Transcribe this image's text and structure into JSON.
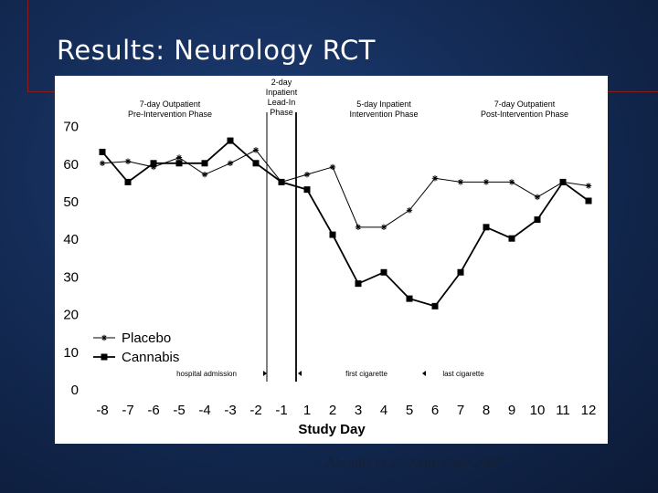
{
  "slide": {
    "title": "Results: Neurology RCT",
    "citation": "Abrams et al. Neurology 2007"
  },
  "colors": {
    "background": "#142c57",
    "accent": "#8a1c1c",
    "title": "#ffffff",
    "ink": "#000000"
  },
  "chart_data": {
    "type": "line",
    "xlabel": "Study Day",
    "ylabel": "",
    "x": [
      -8,
      -7,
      -6,
      -5,
      -4,
      -3,
      -2,
      -1,
      1,
      2,
      3,
      4,
      5,
      6,
      7,
      8,
      9,
      10,
      11,
      12
    ],
    "ylim": [
      0,
      70
    ],
    "y_ticks": [
      0,
      10,
      20,
      30,
      40,
      50,
      60,
      70
    ],
    "grid": false,
    "legend_position": "bottom-left",
    "series": [
      {
        "name": "Placebo",
        "marker": "star",
        "values": [
          60,
          60.5,
          59,
          61.5,
          57,
          60,
          63.5,
          55,
          57,
          59,
          43,
          43,
          47.5,
          56,
          55,
          55,
          55,
          51,
          55,
          54
        ]
      },
      {
        "name": "Cannabis",
        "marker": "square",
        "values": [
          63,
          55,
          60,
          60,
          60,
          66,
          60,
          55,
          53,
          41,
          28,
          31,
          24,
          22,
          31,
          43,
          40,
          45,
          55,
          50
        ]
      }
    ],
    "phases": [
      {
        "lines": [
          "7-day Outpatient",
          "Pre-Intervention Phase"
        ]
      },
      {
        "lines": [
          "2-day",
          "Inpatient",
          "Lead-In",
          "Phase"
        ]
      },
      {
        "lines": [
          "5-day Inpatient",
          "Intervention Phase"
        ]
      },
      {
        "lines": [
          "7-day Outpatient",
          "Post-Intervention Phase"
        ]
      }
    ],
    "annotations": [
      "hospital admission",
      "first cigarette",
      "last cigarette"
    ]
  }
}
